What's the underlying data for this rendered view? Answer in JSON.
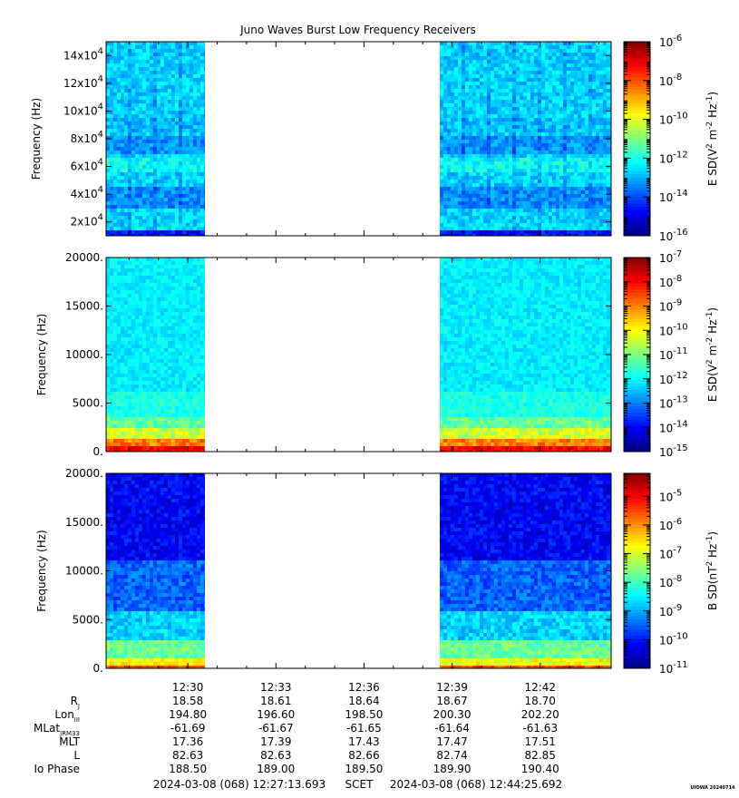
{
  "title": "Juno Waves Burst Low Frequency Receivers",
  "chart_data": [
    {
      "type": "heatmap",
      "panel": "top",
      "ylabel": "Frequency (Hz)",
      "yticks": [
        {
          "value": 20000,
          "mant": "2x10",
          "exp": "4"
        },
        {
          "value": 40000,
          "mant": "4x10",
          "exp": "4"
        },
        {
          "value": 60000,
          "mant": "6x10",
          "exp": "4"
        },
        {
          "value": 80000,
          "mant": "8x10",
          "exp": "4"
        },
        {
          "value": 100000,
          "mant": "10x10",
          "exp": "4"
        },
        {
          "value": 120000,
          "mant": "12x10",
          "exp": "4"
        },
        {
          "value": 140000,
          "mant": "14x10",
          "exp": "4"
        }
      ],
      "ylim": [
        10000,
        150000
      ],
      "colorbar": {
        "label_html": "E SD(V<sup>2</sup> m<sup>-2</sup> Hz<sup>-1</sup>)",
        "label_parts": [
          [
            "E SD(V",
            ""
          ],
          [
            "2",
            "sup"
          ],
          [
            " m",
            ""
          ],
          [
            "-2",
            "sup"
          ],
          [
            " Hz",
            ""
          ],
          [
            "-1",
            "sup"
          ],
          [
            ")",
            ""
          ]
        ],
        "scale": "log",
        "range_exp": [
          -16,
          -6
        ],
        "tick_exps": [
          "-6",
          "-8",
          "-10",
          "-12",
          "-14",
          "-16"
        ]
      },
      "data_gap": [
        "2024-03-08 12:30:35",
        "2024-03-08 12:38:35"
      ]
    },
    {
      "type": "heatmap",
      "panel": "middle",
      "ylabel": "Frequency (Hz)",
      "yticks": [
        {
          "value": 0,
          "label": "0."
        },
        {
          "value": 5000,
          "label": "5000."
        },
        {
          "value": 10000,
          "label": "10000."
        },
        {
          "value": 15000,
          "label": "15000."
        },
        {
          "value": 20000,
          "label": "20000."
        }
      ],
      "ylim": [
        0,
        20000
      ],
      "colorbar": {
        "label_parts": [
          [
            "E SD(V",
            ""
          ],
          [
            "2",
            "sup"
          ],
          [
            " m",
            ""
          ],
          [
            "-2",
            "sup"
          ],
          [
            " Hz",
            ""
          ],
          [
            "-1",
            "sup"
          ],
          [
            ")",
            ""
          ]
        ],
        "scale": "log",
        "range_exp": [
          -15,
          -7
        ],
        "tick_exps": [
          "-7",
          "-8",
          "-9",
          "-10",
          "-11",
          "-12",
          "-13",
          "-14",
          "-15"
        ]
      },
      "data_gap": [
        "2024-03-08 12:30:35",
        "2024-03-08 12:38:35"
      ]
    },
    {
      "type": "heatmap",
      "panel": "bottom",
      "ylabel": "Frequency (Hz)",
      "yticks": [
        {
          "value": 0,
          "label": "0."
        },
        {
          "value": 5000,
          "label": "5000."
        },
        {
          "value": 10000,
          "label": "10000."
        },
        {
          "value": 15000,
          "label": "15000."
        },
        {
          "value": 20000,
          "label": "20000."
        }
      ],
      "ylim": [
        0,
        20000
      ],
      "colorbar": {
        "label_parts": [
          [
            "B SD(nT",
            ""
          ],
          [
            "2",
            "sup"
          ],
          [
            " Hz",
            ""
          ],
          [
            "-1",
            "sup"
          ],
          [
            ")",
            ""
          ]
        ],
        "scale": "log",
        "range_exp": [
          -11,
          -4.2
        ],
        "tick_exps": [
          "-5",
          "-6",
          "-7",
          "-8",
          "-9",
          "-10",
          "-11"
        ]
      },
      "data_gap": [
        "2024-03-08 12:30:35",
        "2024-03-08 12:38:35"
      ]
    }
  ],
  "x_axis": {
    "start": "2024-03-08 12:27:13",
    "end": "2024-03-08 12:44:25",
    "tick_labels": [
      "12:30",
      "12:33",
      "12:36",
      "12:39",
      "12:42"
    ],
    "tick_times": [
      "12:30:00",
      "12:33:00",
      "12:36:00",
      "12:39:00",
      "12:42:00"
    ]
  },
  "ephemeris": {
    "rows": [
      {
        "label": "R",
        "sub": "J",
        "values": [
          "18.58",
          "18.61",
          "18.64",
          "18.67",
          "18.70"
        ]
      },
      {
        "label": "Lon",
        "sub": "III",
        "values": [
          "194.80",
          "196.60",
          "198.50",
          "200.30",
          "202.20"
        ]
      },
      {
        "label": "MLat",
        "sub": "JRM33",
        "values": [
          "-61.69",
          "-61.67",
          "-61.65",
          "-61.64",
          "-61.63"
        ]
      },
      {
        "label": "MLT",
        "sub": "",
        "values": [
          "17.36",
          "17.39",
          "17.43",
          "17.47",
          "17.51"
        ]
      },
      {
        "label": "L",
        "sub": "",
        "values": [
          "82.63",
          "82.63",
          "82.66",
          "82.74",
          "82.85"
        ]
      },
      {
        "label": "Io Phase",
        "sub": "",
        "values": [
          "188.50",
          "189.00",
          "189.50",
          "189.90",
          "190.40"
        ]
      }
    ]
  },
  "footer": {
    "start_label": "2024-03-08 (068) 12:27:13.693",
    "mid_label": "SCET",
    "end_label": "2024-03-08 (068) 12:44:25.692",
    "stamp": "UIOWA 20240714"
  }
}
